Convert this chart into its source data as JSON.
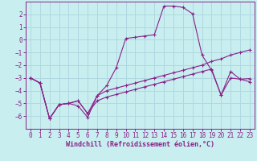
{
  "bg_color": "#c8eef0",
  "line_color": "#882288",
  "grid_color": "#b0d8e0",
  "xlabel": "Windchill (Refroidissement éolien,°C)",
  "series": [
    {
      "x": [
        0,
        1,
        2,
        3,
        4,
        5,
        6,
        7,
        8,
        9,
        10,
        11,
        12,
        13,
        14,
        15,
        16,
        17,
        18,
        19,
        20,
        21,
        22,
        23
      ],
      "y": [
        -3.0,
        -3.4,
        -6.2,
        -5.1,
        -5.0,
        -5.2,
        -6.1,
        -4.4,
        -3.6,
        -2.2,
        0.1,
        0.2,
        0.3,
        0.4,
        2.65,
        2.65,
        2.55,
        2.05,
        -1.2,
        -2.4,
        -4.35,
        -3.0,
        -3.1,
        -3.05
      ]
    },
    {
      "x": [
        0,
        1,
        2,
        3,
        4,
        5,
        6,
        7,
        8,
        9,
        10,
        11,
        12,
        13,
        14,
        15,
        16,
        17,
        18,
        19,
        20,
        21,
        22,
        23
      ],
      "y": [
        -3.0,
        -3.4,
        -6.2,
        -5.1,
        -5.0,
        -4.8,
        -5.8,
        -4.8,
        -4.5,
        -4.3,
        -4.1,
        -3.9,
        -3.7,
        -3.5,
        -3.3,
        -3.1,
        -2.9,
        -2.7,
        -2.5,
        -2.3,
        -4.35,
        -2.5,
        -3.1,
        -3.3
      ]
    },
    {
      "x": [
        0,
        1,
        2,
        3,
        4,
        5,
        6,
        7,
        8,
        9,
        10,
        11,
        12,
        13,
        14,
        15,
        16,
        17,
        18,
        19,
        20,
        21,
        22,
        23
      ],
      "y": [
        -3.0,
        -3.4,
        -6.2,
        -5.1,
        -5.0,
        -4.8,
        -5.8,
        -4.4,
        -4.0,
        -3.8,
        -3.6,
        -3.4,
        -3.2,
        -3.0,
        -2.8,
        -2.6,
        -2.4,
        -2.2,
        -2.0,
        -1.7,
        -1.5,
        -1.2,
        -1.0,
        -0.8
      ]
    }
  ],
  "ylim": [
    -7,
    3
  ],
  "xlim": [
    -0.5,
    23.5
  ],
  "yticks": [
    -6,
    -5,
    -4,
    -3,
    -2,
    -1,
    0,
    1,
    2
  ],
  "xticks": [
    0,
    1,
    2,
    3,
    4,
    5,
    6,
    7,
    8,
    9,
    10,
    11,
    12,
    13,
    14,
    15,
    16,
    17,
    18,
    19,
    20,
    21,
    22,
    23
  ],
  "tick_fontsize": 5.5,
  "label_fontsize": 6.0,
  "figsize": [
    3.2,
    2.0
  ],
  "dpi": 100
}
